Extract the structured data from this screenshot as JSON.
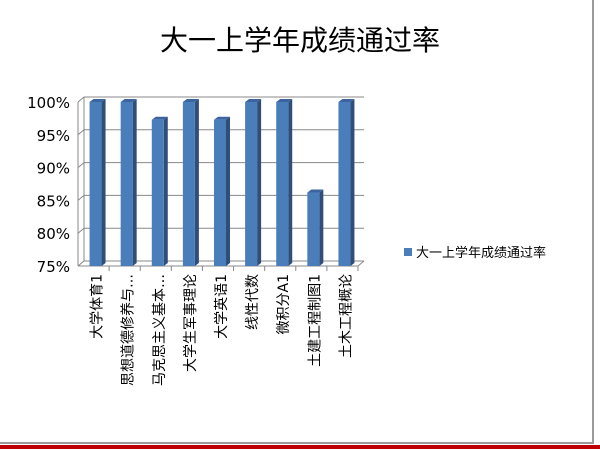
{
  "chart_data": {
    "type": "bar",
    "title": "大一上学年成绩通过率",
    "categories": [
      "大学体育1",
      "思想道德修养与…",
      "马克思主义基本…",
      "大学生军事理论",
      "大学英语1",
      "线性代数",
      "微积分A1",
      "土建工程制图1",
      "土木工程概论"
    ],
    "series": [
      {
        "name": "大一上学年成绩通过率",
        "values": [
          100,
          100,
          97.3,
          100,
          97.3,
          100,
          100,
          86.2,
          100
        ],
        "color": "#4a7ebb"
      }
    ],
    "yticks": [
      "75%",
      "80%",
      "85%",
      "90%",
      "95%",
      "100%"
    ],
    "ylim": [
      75,
      100
    ],
    "grid": true,
    "legend": "right",
    "style": "3d-column"
  }
}
